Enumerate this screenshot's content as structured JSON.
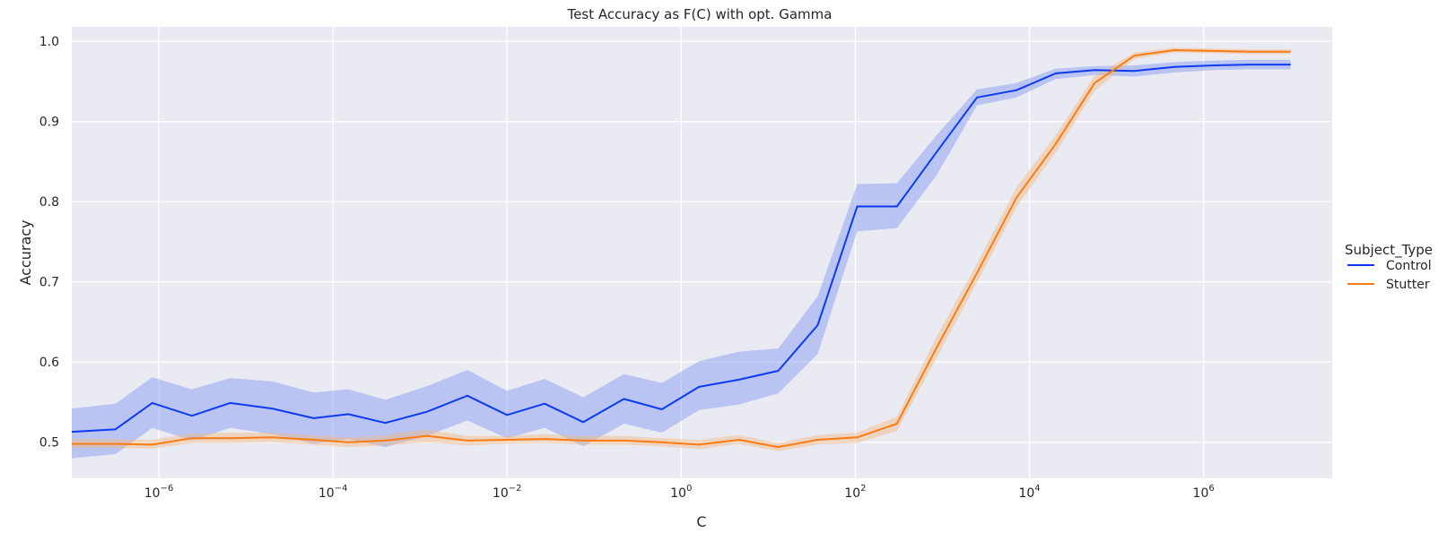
{
  "chart_data": {
    "type": "line",
    "title": "Test Accuracy as F(C) with opt. Gamma",
    "xlabel": "C",
    "ylabel": "Accuracy",
    "x_scale": "log",
    "xlim": [
      1e-07,
      30000000.0
    ],
    "ylim": [
      0.455,
      1.018
    ],
    "grid": true,
    "x_ticks": [
      {
        "value": 1e-06,
        "base": "10",
        "exp": "−6"
      },
      {
        "value": 0.0001,
        "base": "10",
        "exp": "−4"
      },
      {
        "value": 0.01,
        "base": "10",
        "exp": "−2"
      },
      {
        "value": 1,
        "base": "10",
        "exp": "0"
      },
      {
        "value": 100,
        "base": "10",
        "exp": "2"
      },
      {
        "value": 10000,
        "base": "10",
        "exp": "4"
      },
      {
        "value": 1000000,
        "base": "10",
        "exp": "6"
      }
    ],
    "y_ticks": [
      {
        "value": 0.5,
        "label": "0.5"
      },
      {
        "value": 0.6,
        "label": "0.6"
      },
      {
        "value": 0.7,
        "label": "0.7"
      },
      {
        "value": 0.8,
        "label": "0.8"
      },
      {
        "value": 0.9,
        "label": "0.9"
      },
      {
        "value": 1.0,
        "label": "1.0"
      }
    ],
    "legend": {
      "title": "Subject_Type",
      "placement": "right"
    },
    "x": [
      1e-07,
      3.16e-07,
      8.4e-07,
      2.4e-06,
      6.6e-06,
      2e-05,
      6e-05,
      0.00015,
      0.0004,
      0.0012,
      0.0035,
      0.01,
      0.027,
      0.075,
      0.22,
      0.6,
      1.6,
      4.6,
      13,
      37,
      105,
      300,
      860,
      2500,
      7100,
      20000,
      56000,
      160000,
      460000,
      1300000,
      3500000,
      10000000
    ],
    "series": [
      {
        "name": "Control",
        "color": "#0d3bf0",
        "band_color": "#7f97f5",
        "values": [
          0.513,
          0.516,
          0.549,
          0.533,
          0.549,
          0.542,
          0.53,
          0.535,
          0.524,
          0.538,
          0.558,
          0.534,
          0.548,
          0.525,
          0.554,
          0.541,
          0.569,
          0.578,
          0.589,
          0.646,
          0.794,
          0.794,
          0.862,
          0.93,
          0.939,
          0.96,
          0.964,
          0.963,
          0.968,
          0.97,
          0.971,
          0.971
        ],
        "lower": [
          0.48,
          0.485,
          0.518,
          0.502,
          0.518,
          0.51,
          0.498,
          0.504,
          0.494,
          0.508,
          0.527,
          0.505,
          0.518,
          0.495,
          0.523,
          0.512,
          0.54,
          0.547,
          0.561,
          0.61,
          0.763,
          0.767,
          0.833,
          0.92,
          0.93,
          0.953,
          0.958,
          0.956,
          0.961,
          0.964,
          0.965,
          0.965
        ],
        "upper": [
          0.542,
          0.548,
          0.581,
          0.566,
          0.58,
          0.576,
          0.562,
          0.566,
          0.553,
          0.57,
          0.59,
          0.564,
          0.579,
          0.556,
          0.585,
          0.574,
          0.601,
          0.613,
          0.617,
          0.682,
          0.822,
          0.823,
          0.883,
          0.94,
          0.948,
          0.966,
          0.969,
          0.97,
          0.974,
          0.976,
          0.977,
          0.977
        ]
      },
      {
        "name": "Stutter",
        "color": "#f97c12",
        "band_color": "#f5b880",
        "values": [
          0.498,
          0.498,
          0.497,
          0.505,
          0.505,
          0.506,
          0.503,
          0.5,
          0.502,
          0.508,
          0.502,
          0.503,
          0.504,
          0.502,
          0.502,
          0.5,
          0.497,
          0.503,
          0.494,
          0.503,
          0.506,
          0.523,
          0.618,
          0.711,
          0.805,
          0.872,
          0.948,
          0.982,
          0.989,
          0.988,
          0.987,
          0.987
        ],
        "lower": [
          0.493,
          0.493,
          0.492,
          0.499,
          0.499,
          0.5,
          0.497,
          0.494,
          0.496,
          0.5,
          0.496,
          0.498,
          0.499,
          0.497,
          0.497,
          0.495,
          0.491,
          0.498,
          0.489,
          0.497,
          0.499,
          0.514,
          0.605,
          0.699,
          0.793,
          0.861,
          0.938,
          0.978,
          0.986,
          0.985,
          0.984,
          0.984
        ],
        "upper": [
          0.504,
          0.504,
          0.503,
          0.511,
          0.512,
          0.512,
          0.509,
          0.506,
          0.509,
          0.516,
          0.508,
          0.508,
          0.51,
          0.508,
          0.508,
          0.505,
          0.503,
          0.509,
          0.499,
          0.509,
          0.512,
          0.532,
          0.632,
          0.723,
          0.818,
          0.883,
          0.957,
          0.986,
          0.992,
          0.991,
          0.99,
          0.99
        ]
      }
    ]
  }
}
